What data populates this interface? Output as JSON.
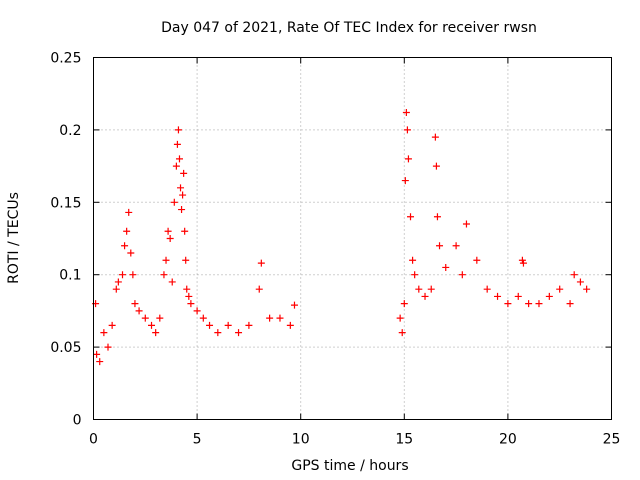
{
  "chart_data": {
    "type": "scatter",
    "title": "Day 047 of 2021, Rate Of TEC Index for receiver rwsn",
    "xlabel": "GPS time / hours",
    "ylabel": "ROTI / TECUs",
    "xlim": [
      0,
      25
    ],
    "ylim": [
      0,
      0.25
    ],
    "xticks": [
      "0",
      "5",
      "10",
      "15",
      "20",
      "25"
    ],
    "yticks": [
      "0",
      "0.05",
      "0.1",
      "0.15",
      "0.2",
      "0.25"
    ],
    "grid": true,
    "marker": "+",
    "color": "#ff0000",
    "series": [
      {
        "x": [
          0.1,
          0.15,
          0.3,
          0.5,
          0.7,
          0.9,
          1.1,
          1.2,
          1.4,
          1.5,
          1.6,
          1.7,
          1.8,
          1.9,
          2.0,
          2.2,
          2.5,
          2.8,
          3.0,
          3.2,
          3.4,
          3.5,
          3.6,
          3.7,
          3.8,
          3.9,
          4.0,
          4.05,
          4.1,
          4.15,
          4.2,
          4.25,
          4.3,
          4.35,
          4.4,
          4.45,
          4.5,
          4.6,
          4.7,
          5.0,
          5.3,
          5.6,
          6.0,
          6.5,
          7.0,
          7.5,
          8.0,
          8.1,
          8.5,
          9.0,
          9.5,
          9.7,
          14.8,
          14.9,
          15.0,
          15.05,
          15.1,
          15.15,
          15.2,
          15.3,
          15.4,
          15.5,
          15.7,
          16.0,
          16.3,
          16.5,
          16.55,
          16.6,
          16.7,
          17.0,
          17.5,
          17.8,
          18.0,
          18.5,
          19.0,
          19.5,
          20.0,
          20.5,
          20.7,
          20.75,
          21.0,
          21.5,
          22.0,
          22.5,
          23.0,
          23.2,
          23.5,
          23.8
        ],
        "y": [
          0.08,
          0.045,
          0.04,
          0.06,
          0.05,
          0.065,
          0.09,
          0.095,
          0.1,
          0.12,
          0.13,
          0.143,
          0.115,
          0.1,
          0.08,
          0.075,
          0.07,
          0.065,
          0.06,
          0.07,
          0.1,
          0.11,
          0.13,
          0.125,
          0.095,
          0.15,
          0.175,
          0.19,
          0.2,
          0.18,
          0.16,
          0.145,
          0.155,
          0.17,
          0.13,
          0.11,
          0.09,
          0.085,
          0.08,
          0.075,
          0.07,
          0.065,
          0.06,
          0.065,
          0.06,
          0.065,
          0.09,
          0.108,
          0.07,
          0.07,
          0.065,
          0.079,
          0.07,
          0.06,
          0.08,
          0.165,
          0.212,
          0.2,
          0.18,
          0.14,
          0.11,
          0.1,
          0.09,
          0.085,
          0.09,
          0.195,
          0.175,
          0.14,
          0.12,
          0.105,
          0.12,
          0.1,
          0.135,
          0.11,
          0.09,
          0.085,
          0.08,
          0.085,
          0.11,
          0.108,
          0.08,
          0.08,
          0.085,
          0.09,
          0.08,
          0.1,
          0.095,
          0.09
        ]
      }
    ]
  }
}
